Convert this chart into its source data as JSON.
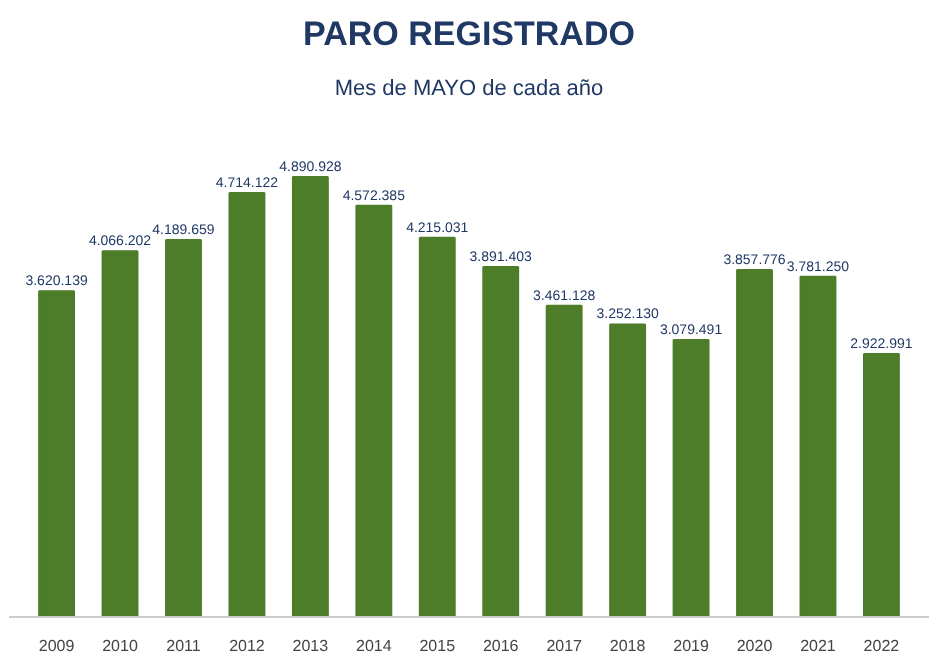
{
  "chart_data": {
    "type": "bar",
    "title": "PARO REGISTRADO",
    "subtitle": "Mes de MAYO de cada año",
    "categories": [
      "2009",
      "2010",
      "2011",
      "2012",
      "2013",
      "2014",
      "2015",
      "2016",
      "2017",
      "2018",
      "2019",
      "2020",
      "2021",
      "2022"
    ],
    "values": [
      3620139,
      4066202,
      4189659,
      4714122,
      4890928,
      4572385,
      4215031,
      3891403,
      3461128,
      3252130,
      3079491,
      3857776,
      3781250,
      2922991
    ],
    "value_labels": [
      "3.620.139",
      "4.066.202",
      "4.189.659",
      "4.714.122",
      "4.890.928",
      "4.572.385",
      "4.215.031",
      "3.891.403",
      "3.461.128",
      "3.252.130",
      "3.079.491",
      "3.857.776",
      "3.781.250",
      "2.922.991"
    ],
    "color": "#4e7d2a",
    "grid": false
  }
}
